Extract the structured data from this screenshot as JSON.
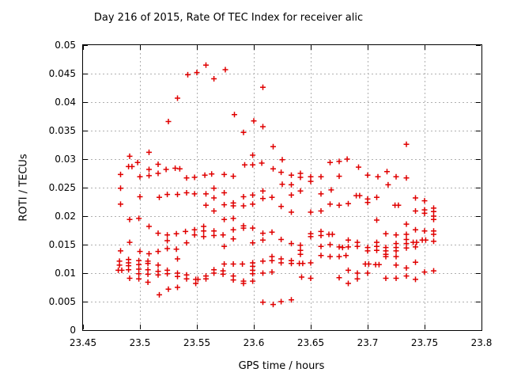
{
  "chart": {
    "title": "Day 216 of 2015, Rate Of TEC Index for receiver alic"
  },
  "colors": {
    "marker": "#e00000",
    "grid": "#b0b0b0",
    "border": "#000000",
    "background": "#ffffff"
  },
  "chart_data": {
    "type": "scatter",
    "title": "Day 216 of 2015, Rate Of TEC Index for receiver alic",
    "xlabel": "GPS time / hours",
    "ylabel": "ROTI / TECUs",
    "xlim": [
      23.45,
      23.8
    ],
    "ylim": [
      0,
      0.05
    ],
    "xticks": [
      23.45,
      23.5,
      23.55,
      23.6,
      23.65,
      23.7,
      23.75,
      23.8
    ],
    "xtick_labels": [
      "23.45",
      "23.5",
      "23.55",
      "23.6",
      "23.65",
      "23.7",
      "23.75",
      "23.8"
    ],
    "yticks": [
      0,
      0.005,
      0.01,
      0.015,
      0.02,
      0.025,
      0.03,
      0.035,
      0.04,
      0.045,
      0.05
    ],
    "ytick_labels": [
      "0",
      "0.005",
      "0.01",
      "0.015",
      "0.02",
      "0.025",
      "0.03",
      "0.035",
      "0.04",
      "0.045",
      "0.05"
    ],
    "grid": true,
    "legend": "none",
    "marker": {
      "shape": "plus",
      "size": 7
    },
    "series": [
      {
        "name": "ROTI",
        "points": [
          [
            23.558,
            0.0465
          ],
          [
            23.542,
            0.0448
          ],
          [
            23.55,
            0.0452
          ],
          [
            23.565,
            0.0441
          ],
          [
            23.533,
            0.0407
          ],
          [
            23.525,
            0.0366
          ],
          [
            23.508,
            0.0312
          ],
          [
            23.491,
            0.0305
          ],
          [
            23.498,
            0.0294
          ],
          [
            23.49,
            0.0287
          ],
          [
            23.493,
            0.0287
          ],
          [
            23.516,
            0.0291
          ],
          [
            23.508,
            0.0282
          ],
          [
            23.516,
            0.0275
          ],
          [
            23.523,
            0.0282
          ],
          [
            23.531,
            0.0284
          ],
          [
            23.535,
            0.0283
          ],
          [
            23.483,
            0.0273
          ],
          [
            23.5,
            0.0269
          ],
          [
            23.508,
            0.0271
          ],
          [
            23.541,
            0.0267
          ],
          [
            23.548,
            0.0268
          ],
          [
            23.557,
            0.0272
          ],
          [
            23.563,
            0.0274
          ],
          [
            23.575,
            0.0457
          ],
          [
            23.608,
            0.0426
          ],
          [
            23.583,
            0.0378
          ],
          [
            23.6,
            0.0367
          ],
          [
            23.608,
            0.0357
          ],
          [
            23.591,
            0.0347
          ],
          [
            23.617,
            0.0322
          ],
          [
            23.599,
            0.0307
          ],
          [
            23.599,
            0.029
          ],
          [
            23.592,
            0.029
          ],
          [
            23.607,
            0.0293
          ],
          [
            23.625,
            0.0299
          ],
          [
            23.667,
            0.0294
          ],
          [
            23.675,
            0.0296
          ],
          [
            23.682,
            0.03
          ],
          [
            23.617,
            0.0283
          ],
          [
            23.624,
            0.0277
          ],
          [
            23.574,
            0.0273
          ],
          [
            23.582,
            0.027
          ],
          [
            23.633,
            0.0272
          ],
          [
            23.641,
            0.0275
          ],
          [
            23.641,
            0.0268
          ],
          [
            23.65,
            0.0269
          ],
          [
            23.65,
            0.0261
          ],
          [
            23.659,
            0.0269
          ],
          [
            23.675,
            0.027
          ],
          [
            23.625,
            0.0256
          ],
          [
            23.633,
            0.0255
          ],
          [
            23.734,
            0.0326
          ],
          [
            23.692,
            0.0286
          ],
          [
            23.7,
            0.0272
          ],
          [
            23.709,
            0.0269
          ],
          [
            23.717,
            0.0278
          ],
          [
            23.725,
            0.0269
          ],
          [
            23.734,
            0.0267
          ],
          [
            23.718,
            0.0255
          ],
          [
            23.483,
            0.0249
          ],
          [
            23.5,
            0.0234
          ],
          [
            23.517,
            0.0233
          ],
          [
            23.524,
            0.0238
          ],
          [
            23.533,
            0.0238
          ],
          [
            23.541,
            0.0241
          ],
          [
            23.548,
            0.0239
          ],
          [
            23.558,
            0.0239
          ],
          [
            23.483,
            0.0221
          ],
          [
            23.558,
            0.0219
          ],
          [
            23.491,
            0.0194
          ],
          [
            23.499,
            0.0196
          ],
          [
            23.508,
            0.0182
          ],
          [
            23.516,
            0.017
          ],
          [
            23.524,
            0.0167
          ],
          [
            23.524,
            0.0157
          ],
          [
            23.532,
            0.0169
          ],
          [
            23.54,
            0.0173
          ],
          [
            23.548,
            0.0176
          ],
          [
            23.548,
            0.0167
          ],
          [
            23.556,
            0.0182
          ],
          [
            23.556,
            0.0174
          ],
          [
            23.556,
            0.0164
          ],
          [
            23.491,
            0.0154
          ],
          [
            23.541,
            0.0153
          ],
          [
            23.483,
            0.0139
          ],
          [
            23.5,
            0.0138
          ],
          [
            23.508,
            0.0134
          ],
          [
            23.516,
            0.0138
          ],
          [
            23.524,
            0.0143
          ],
          [
            23.532,
            0.0142
          ],
          [
            23.533,
            0.0125
          ],
          [
            23.482,
            0.0121
          ],
          [
            23.482,
            0.0114
          ],
          [
            23.481,
            0.0105
          ],
          [
            23.484,
            0.0105
          ],
          [
            23.49,
            0.0124
          ],
          [
            23.49,
            0.0118
          ],
          [
            23.49,
            0.0113
          ],
          [
            23.49,
            0.0106
          ],
          [
            23.491,
            0.0091
          ],
          [
            23.499,
            0.0122
          ],
          [
            23.499,
            0.0115
          ],
          [
            23.499,
            0.0107
          ],
          [
            23.499,
            0.0099
          ],
          [
            23.499,
            0.009
          ],
          [
            23.507,
            0.0121
          ],
          [
            23.507,
            0.0117
          ],
          [
            23.507,
            0.0106
          ],
          [
            23.507,
            0.0098
          ],
          [
            23.507,
            0.0084
          ],
          [
            23.516,
            0.0114
          ],
          [
            23.516,
            0.0103
          ],
          [
            23.516,
            0.0097
          ],
          [
            23.524,
            0.0105
          ],
          [
            23.524,
            0.0099
          ],
          [
            23.533,
            0.01
          ],
          [
            23.533,
            0.0094
          ],
          [
            23.541,
            0.0097
          ],
          [
            23.541,
            0.009
          ],
          [
            23.549,
            0.0089
          ],
          [
            23.551,
            0.0089
          ],
          [
            23.549,
            0.0082
          ],
          [
            23.558,
            0.0095
          ],
          [
            23.558,
            0.009
          ],
          [
            23.525,
            0.0072
          ],
          [
            23.533,
            0.0075
          ],
          [
            23.517,
            0.0062
          ],
          [
            23.565,
            0.0249
          ],
          [
            23.574,
            0.0241
          ],
          [
            23.565,
            0.0232
          ],
          [
            23.565,
            0.0209
          ],
          [
            23.591,
            0.0234
          ],
          [
            23.599,
            0.0237
          ],
          [
            23.608,
            0.0244
          ],
          [
            23.608,
            0.0231
          ],
          [
            23.616,
            0.0233
          ],
          [
            23.633,
            0.0237
          ],
          [
            23.641,
            0.0244
          ],
          [
            23.659,
            0.0239
          ],
          [
            23.668,
            0.0246
          ],
          [
            23.574,
            0.022
          ],
          [
            23.582,
            0.0223
          ],
          [
            23.582,
            0.0218
          ],
          [
            23.591,
            0.0218
          ],
          [
            23.599,
            0.0221
          ],
          [
            23.624,
            0.0217
          ],
          [
            23.667,
            0.0221
          ],
          [
            23.675,
            0.0219
          ],
          [
            23.633,
            0.0207
          ],
          [
            23.65,
            0.0207
          ],
          [
            23.659,
            0.0209
          ],
          [
            23.574,
            0.0194
          ],
          [
            23.582,
            0.0196
          ],
          [
            23.565,
            0.0174
          ],
          [
            23.565,
            0.0166
          ],
          [
            23.573,
            0.0167
          ],
          [
            23.582,
            0.0176
          ],
          [
            23.582,
            0.016
          ],
          [
            23.591,
            0.0183
          ],
          [
            23.591,
            0.0179
          ],
          [
            23.599,
            0.0179
          ],
          [
            23.599,
            0.0153
          ],
          [
            23.608,
            0.017
          ],
          [
            23.608,
            0.0158
          ],
          [
            23.616,
            0.0172
          ],
          [
            23.574,
            0.0147
          ],
          [
            23.624,
            0.0159
          ],
          [
            23.633,
            0.0152
          ],
          [
            23.641,
            0.0149
          ],
          [
            23.641,
            0.014
          ],
          [
            23.65,
            0.0169
          ],
          [
            23.65,
            0.0164
          ],
          [
            23.659,
            0.0173
          ],
          [
            23.659,
            0.0166
          ],
          [
            23.666,
            0.0168
          ],
          [
            23.669,
            0.0168
          ],
          [
            23.659,
            0.0147
          ],
          [
            23.667,
            0.015
          ],
          [
            23.675,
            0.0146
          ],
          [
            23.678,
            0.0145
          ],
          [
            23.641,
            0.0133
          ],
          [
            23.659,
            0.0131
          ],
          [
            23.667,
            0.0129
          ],
          [
            23.675,
            0.0129
          ],
          [
            23.681,
            0.0131
          ],
          [
            23.616,
            0.0129
          ],
          [
            23.616,
            0.0122
          ],
          [
            23.624,
            0.0125
          ],
          [
            23.624,
            0.0118
          ],
          [
            23.633,
            0.0122
          ],
          [
            23.633,
            0.0117
          ],
          [
            23.64,
            0.0117
          ],
          [
            23.643,
            0.0117
          ],
          [
            23.65,
            0.0118
          ],
          [
            23.574,
            0.0116
          ],
          [
            23.582,
            0.0116
          ],
          [
            23.59,
            0.0116
          ],
          [
            23.599,
            0.0118
          ],
          [
            23.599,
            0.0112
          ],
          [
            23.608,
            0.0121
          ],
          [
            23.565,
            0.0106
          ],
          [
            23.565,
            0.01
          ],
          [
            23.573,
            0.0104
          ],
          [
            23.573,
            0.0098
          ],
          [
            23.582,
            0.0095
          ],
          [
            23.582,
            0.0088
          ],
          [
            23.591,
            0.0086
          ],
          [
            23.591,
            0.0082
          ],
          [
            23.599,
            0.0105
          ],
          [
            23.599,
            0.0099
          ],
          [
            23.599,
            0.0086
          ],
          [
            23.608,
            0.01
          ],
          [
            23.616,
            0.0102
          ],
          [
            23.642,
            0.0093
          ],
          [
            23.65,
            0.0091
          ],
          [
            23.675,
            0.0092
          ],
          [
            23.608,
            0.0049
          ],
          [
            23.617,
            0.0045
          ],
          [
            23.624,
            0.005
          ],
          [
            23.633,
            0.0053
          ],
          [
            23.69,
            0.0236
          ],
          [
            23.693,
            0.0236
          ],
          [
            23.683,
            0.0222
          ],
          [
            23.7,
            0.023
          ],
          [
            23.7,
            0.0224
          ],
          [
            23.708,
            0.0233
          ],
          [
            23.724,
            0.0219
          ],
          [
            23.727,
            0.0219
          ],
          [
            23.742,
            0.0232
          ],
          [
            23.75,
            0.0227
          ],
          [
            23.742,
            0.0209
          ],
          [
            23.75,
            0.0211
          ],
          [
            23.75,
            0.0205
          ],
          [
            23.758,
            0.0214
          ],
          [
            23.758,
            0.0208
          ],
          [
            23.758,
            0.02
          ],
          [
            23.758,
            0.0194
          ],
          [
            23.708,
            0.0193
          ],
          [
            23.734,
            0.0186
          ],
          [
            23.742,
            0.0176
          ],
          [
            23.716,
            0.0169
          ],
          [
            23.725,
            0.0167
          ],
          [
            23.734,
            0.0168
          ],
          [
            23.734,
            0.0159
          ],
          [
            23.75,
            0.0174
          ],
          [
            23.748,
            0.0158
          ],
          [
            23.751,
            0.0158
          ],
          [
            23.758,
            0.0174
          ],
          [
            23.758,
            0.0168
          ],
          [
            23.758,
            0.0156
          ],
          [
            23.683,
            0.0158
          ],
          [
            23.691,
            0.0154
          ],
          [
            23.691,
            0.0147
          ],
          [
            23.7,
            0.0145
          ],
          [
            23.7,
            0.0139
          ],
          [
            23.708,
            0.0154
          ],
          [
            23.708,
            0.0147
          ],
          [
            23.708,
            0.014
          ],
          [
            23.716,
            0.0145
          ],
          [
            23.716,
            0.0139
          ],
          [
            23.716,
            0.0133
          ],
          [
            23.716,
            0.0129
          ],
          [
            23.725,
            0.0152
          ],
          [
            23.725,
            0.0145
          ],
          [
            23.725,
            0.0139
          ],
          [
            23.725,
            0.0129
          ],
          [
            23.734,
            0.0152
          ],
          [
            23.734,
            0.0144
          ],
          [
            23.74,
            0.0154
          ],
          [
            23.743,
            0.0154
          ],
          [
            23.742,
            0.0146
          ],
          [
            23.683,
            0.0146
          ],
          [
            23.683,
            0.0105
          ],
          [
            23.683,
            0.0082
          ],
          [
            23.691,
            0.01
          ],
          [
            23.691,
            0.009
          ],
          [
            23.698,
            0.0116
          ],
          [
            23.701,
            0.0116
          ],
          [
            23.707,
            0.0115
          ],
          [
            23.71,
            0.0115
          ],
          [
            23.7,
            0.01
          ],
          [
            23.716,
            0.0091
          ],
          [
            23.725,
            0.0091
          ],
          [
            23.725,
            0.0114
          ],
          [
            23.734,
            0.0109
          ],
          [
            23.734,
            0.0095
          ],
          [
            23.742,
            0.0119
          ],
          [
            23.742,
            0.0089
          ],
          [
            23.75,
            0.0102
          ],
          [
            23.758,
            0.0104
          ]
        ]
      }
    ]
  }
}
